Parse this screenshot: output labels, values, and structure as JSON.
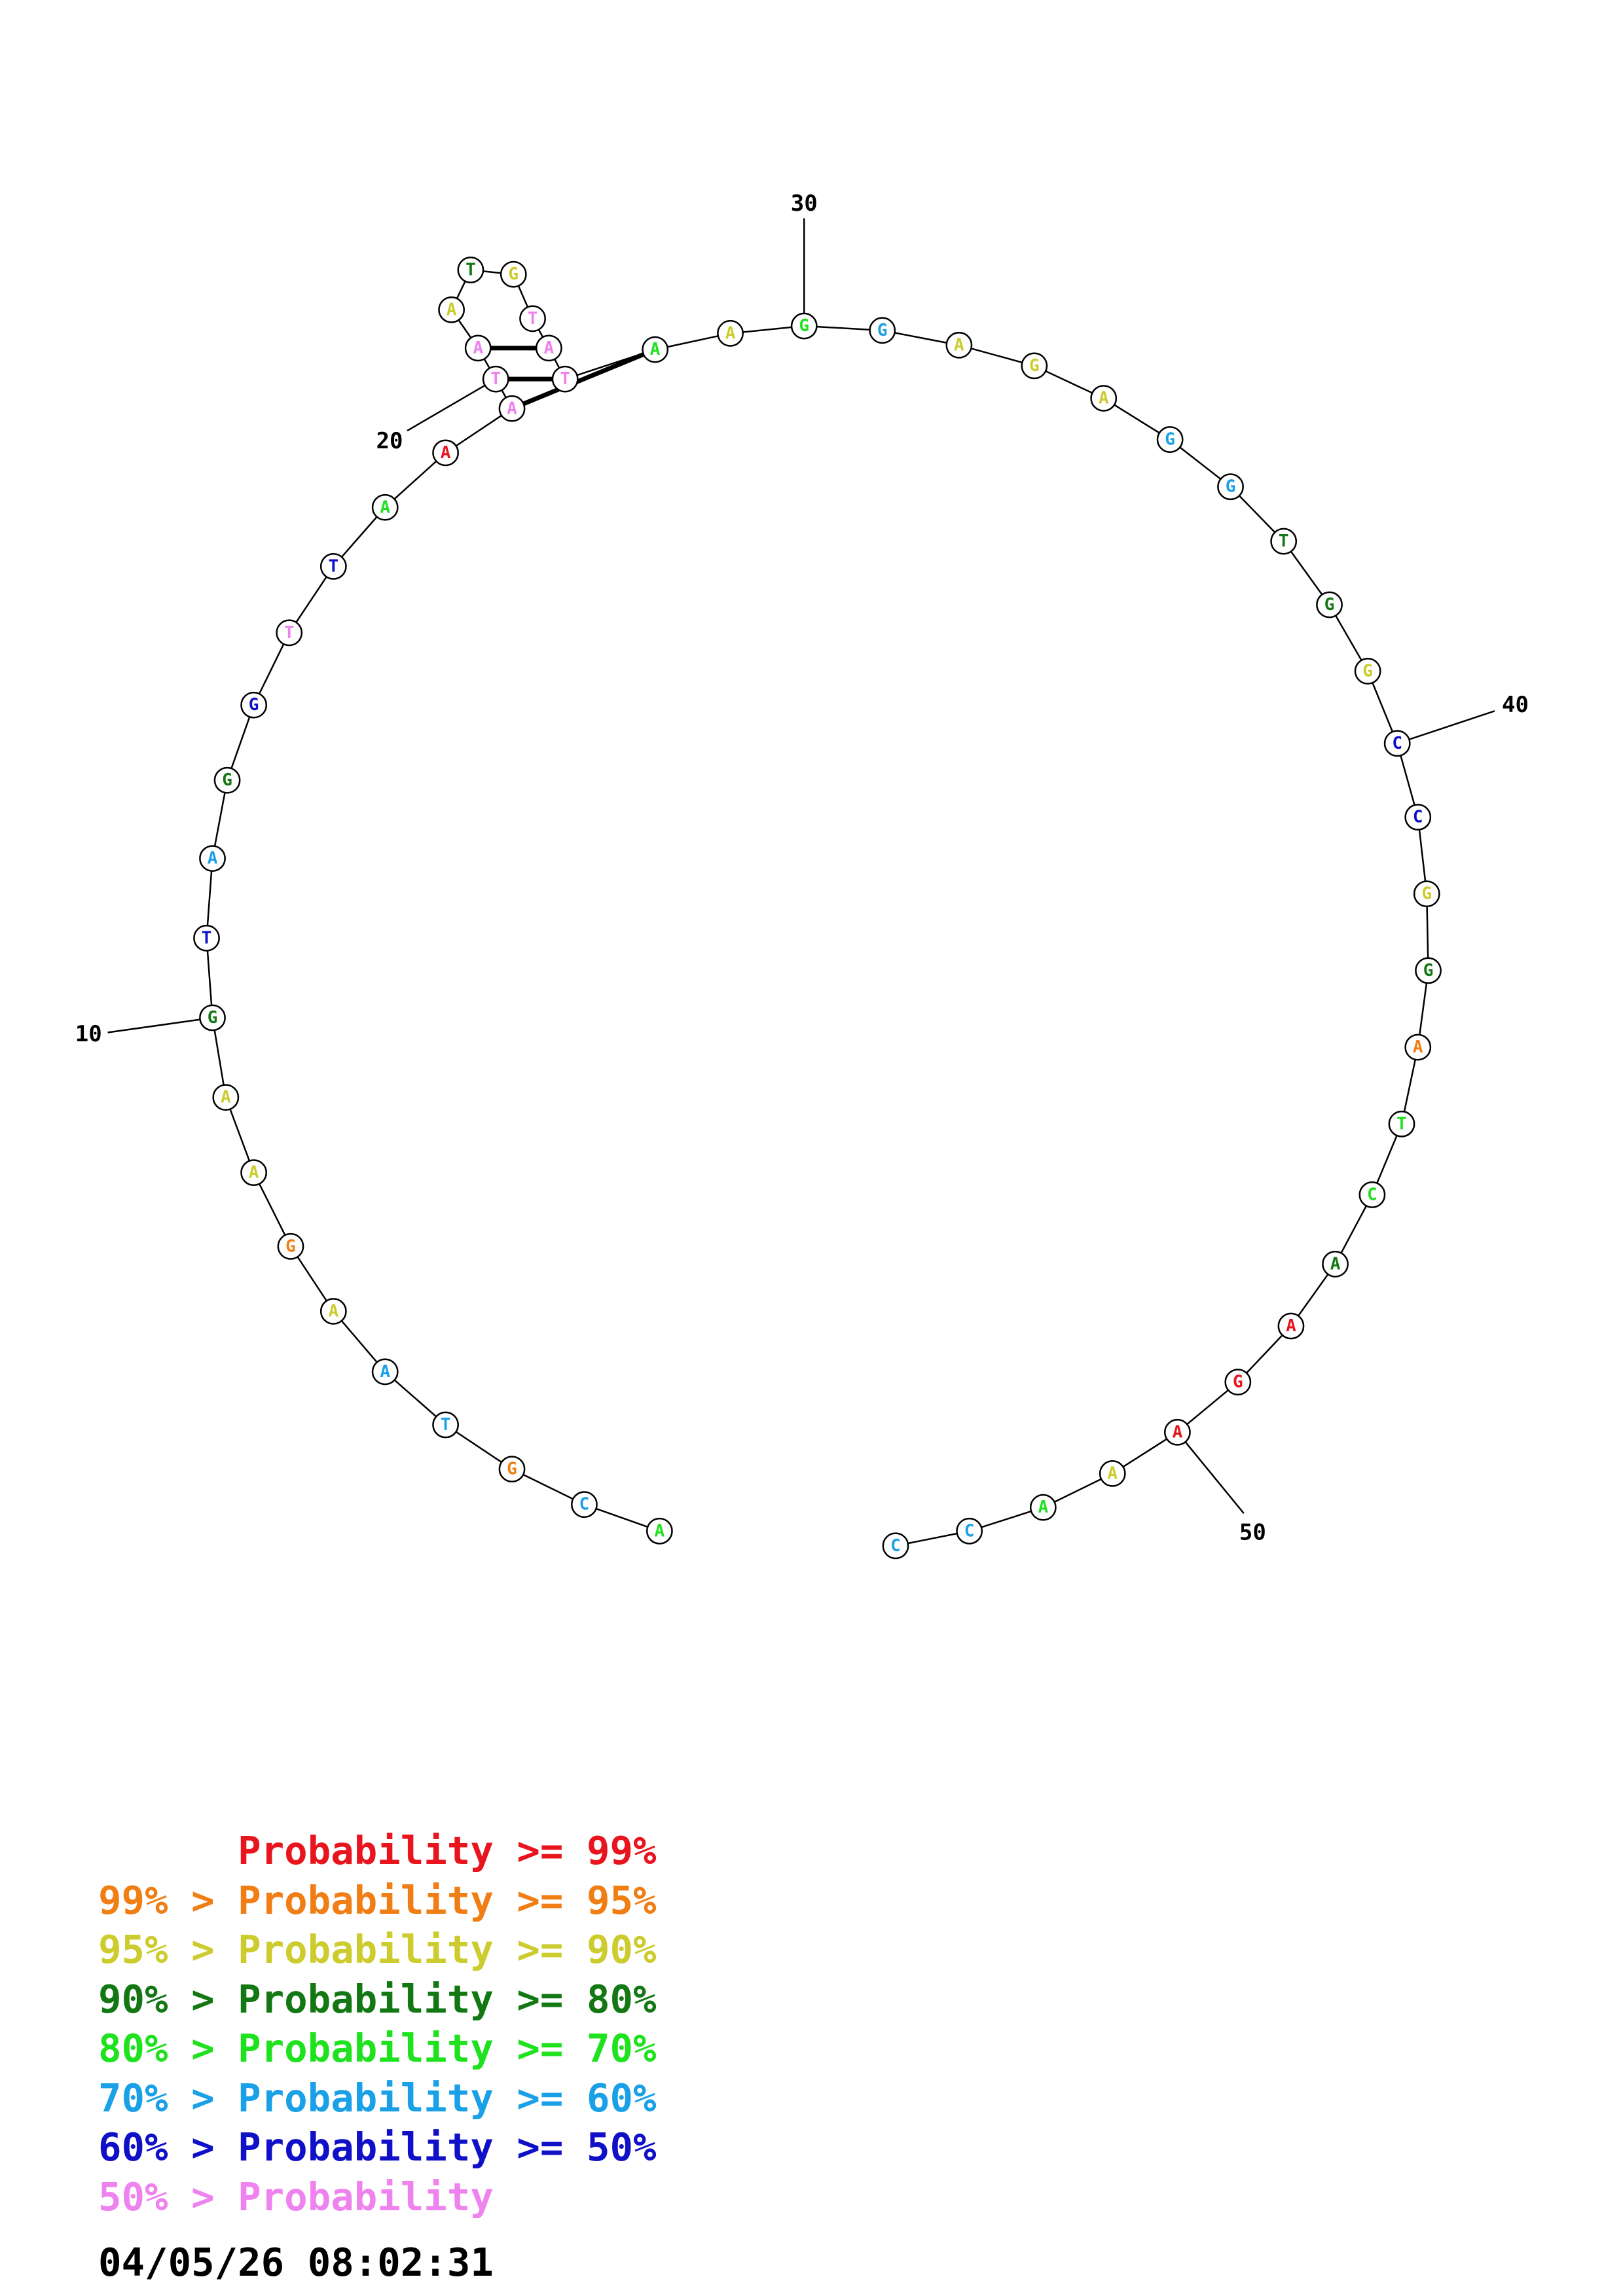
{
  "palette": {
    "red": "#e8151f",
    "orange": "#f07e14",
    "yellow": "#cccc2e",
    "darkgreen": "#137813",
    "green": "#1fe21f",
    "cyan": "#1aa0e6",
    "blue": "#1010c8",
    "pink": "#ee82ee"
  },
  "sequence": [
    {
      "base": "A",
      "color": "green"
    },
    {
      "base": "C",
      "color": "cyan"
    },
    {
      "base": "G",
      "color": "orange"
    },
    {
      "base": "T",
      "color": "cyan"
    },
    {
      "base": "A",
      "color": "cyan"
    },
    {
      "base": "A",
      "color": "yellow"
    },
    {
      "base": "G",
      "color": "orange"
    },
    {
      "base": "A",
      "color": "yellow"
    },
    {
      "base": "A",
      "color": "yellow"
    },
    {
      "base": "G",
      "color": "darkgreen"
    },
    {
      "base": "T",
      "color": "blue"
    },
    {
      "base": "A",
      "color": "cyan"
    },
    {
      "base": "G",
      "color": "darkgreen"
    },
    {
      "base": "G",
      "color": "blue"
    },
    {
      "base": "T",
      "color": "pink"
    },
    {
      "base": "T",
      "color": "blue"
    },
    {
      "base": "A",
      "color": "green"
    },
    {
      "base": "A",
      "color": "red"
    },
    {
      "base": "A",
      "color": "pink"
    },
    {
      "base": "T",
      "color": "pink"
    },
    {
      "base": "A",
      "color": "pink"
    },
    {
      "base": "A",
      "color": "yellow"
    },
    {
      "base": "T",
      "color": "darkgreen"
    },
    {
      "base": "G",
      "color": "yellow"
    },
    {
      "base": "T",
      "color": "pink"
    },
    {
      "base": "A",
      "color": "pink"
    },
    {
      "base": "T",
      "color": "pink"
    },
    {
      "base": "A",
      "color": "green"
    },
    {
      "base": "A",
      "color": "yellow"
    },
    {
      "base": "G",
      "color": "green"
    },
    {
      "base": "G",
      "color": "cyan"
    },
    {
      "base": "A",
      "color": "yellow"
    },
    {
      "base": "G",
      "color": "yellow"
    },
    {
      "base": "A",
      "color": "yellow"
    },
    {
      "base": "G",
      "color": "cyan"
    },
    {
      "base": "G",
      "color": "cyan"
    },
    {
      "base": "T",
      "color": "darkgreen"
    },
    {
      "base": "G",
      "color": "darkgreen"
    },
    {
      "base": "G",
      "color": "yellow"
    },
    {
      "base": "C",
      "color": "blue"
    },
    {
      "base": "C",
      "color": "blue"
    },
    {
      "base": "G",
      "color": "yellow"
    },
    {
      "base": "G",
      "color": "darkgreen"
    },
    {
      "base": "A",
      "color": "orange"
    },
    {
      "base": "T",
      "color": "green"
    },
    {
      "base": "C",
      "color": "green"
    },
    {
      "base": "A",
      "color": "darkgreen"
    },
    {
      "base": "A",
      "color": "red"
    },
    {
      "base": "G",
      "color": "red"
    },
    {
      "base": "A",
      "color": "red"
    },
    {
      "base": "A",
      "color": "yellow"
    },
    {
      "base": "A",
      "color": "green"
    },
    {
      "base": "C",
      "color": "cyan"
    },
    {
      "base": "C",
      "color": "cyan"
    }
  ],
  "pairs": [
    [
      18,
      27
    ],
    [
      19,
      26
    ],
    [
      20,
      25
    ]
  ],
  "tick_labels": [
    {
      "nucleotide": 10,
      "text": "10"
    },
    {
      "nucleotide": 20,
      "text": "20"
    },
    {
      "nucleotide": 30,
      "text": "30"
    },
    {
      "nucleotide": 40,
      "text": "40"
    },
    {
      "nucleotide": 50,
      "text": "50"
    }
  ],
  "legend": [
    {
      "prefix": "",
      "label": "Probability",
      "suffix": ">= 99%",
      "color": "red"
    },
    {
      "prefix": "99% >",
      "label": "Probability",
      "suffix": ">= 95%",
      "color": "orange"
    },
    {
      "prefix": "95% >",
      "label": "Probability",
      "suffix": ">= 90%",
      "color": "yellow"
    },
    {
      "prefix": "90% >",
      "label": "Probability",
      "suffix": ">= 80%",
      "color": "darkgreen"
    },
    {
      "prefix": "80% >",
      "label": "Probability",
      "suffix": ">= 70%",
      "color": "green"
    },
    {
      "prefix": "70% >",
      "label": "Probability",
      "suffix": ">= 60%",
      "color": "cyan"
    },
    {
      "prefix": "60% >",
      "label": "Probability",
      "suffix": ">= 50%",
      "color": "blue"
    },
    {
      "prefix": "50% >",
      "label": "Probability",
      "suffix": "",
      "color": "pink"
    }
  ],
  "timestamp": "04/05/26 08:02:31"
}
